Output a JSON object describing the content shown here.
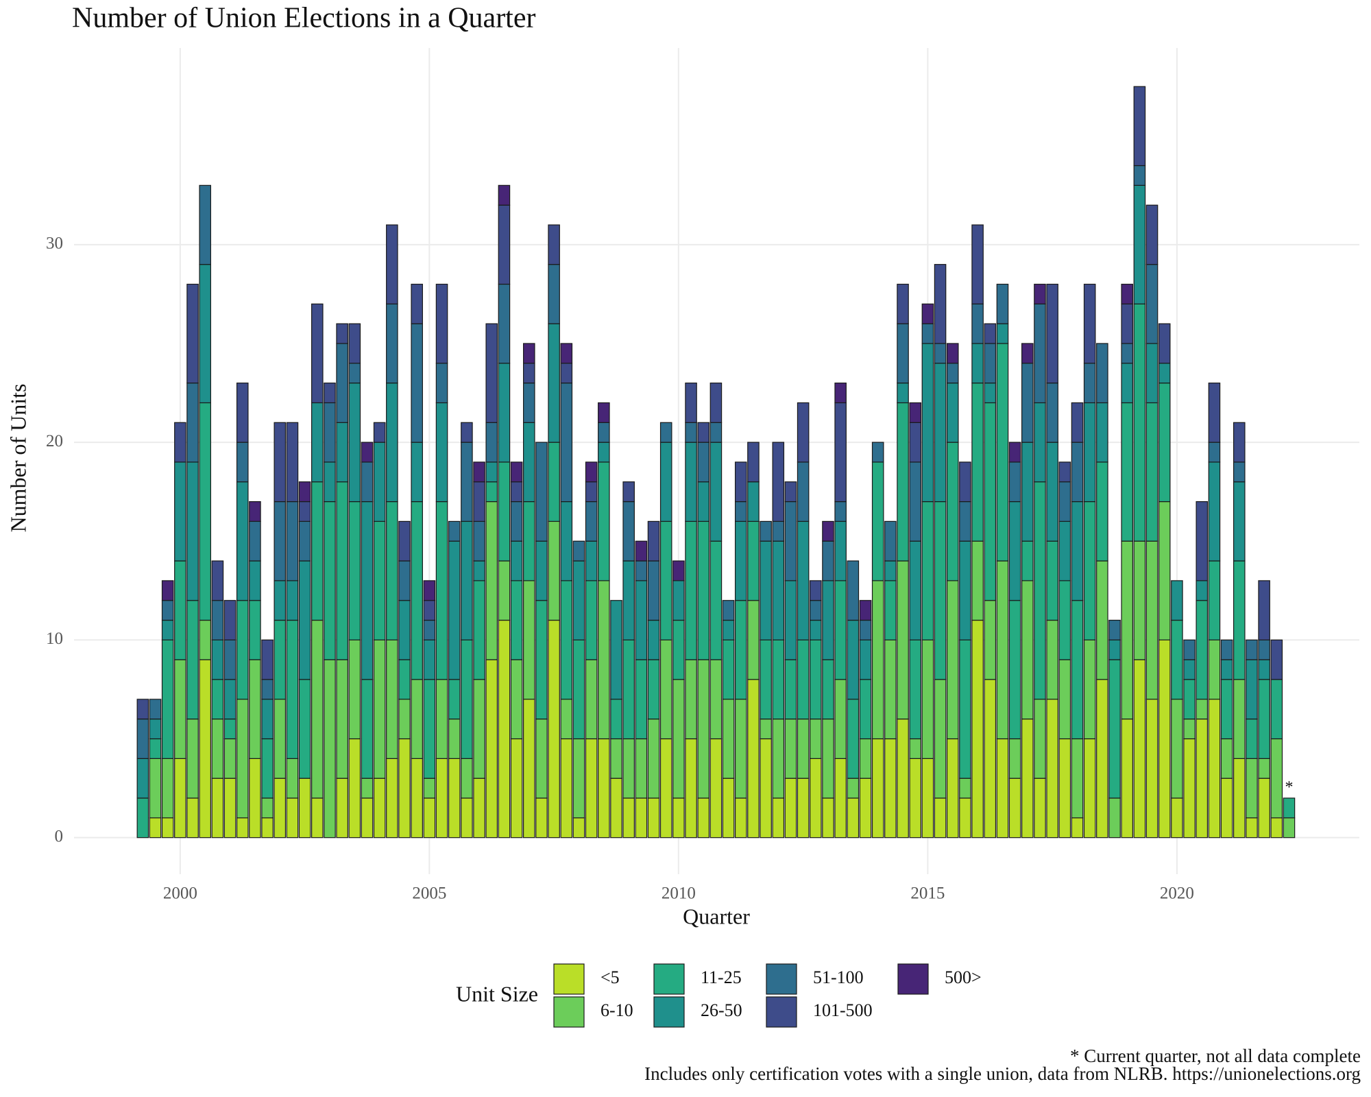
{
  "chart_data": {
    "type": "bar",
    "title": "Number of Union Elections in a Quarter",
    "x_label": "Quarter",
    "y_label": "Number of Units",
    "legend_title": "Unit Size",
    "annotation": "*",
    "caption": [
      "* Current quarter, not all data complete",
      "Includes only certification votes with a single union, data from NLRB. https://unionelections.org"
    ],
    "stacked": true,
    "grid": true,
    "legend": "bottom",
    "x": [
      1999.25,
      1999.5,
      1999.75,
      2000,
      2000.25,
      2000.5,
      2000.75,
      2001,
      2001.25,
      2001.5,
      2001.75,
      2002,
      2002.25,
      2002.5,
      2002.75,
      2003,
      2003.25,
      2003.5,
      2003.75,
      2004,
      2004.25,
      2004.5,
      2004.75,
      2005,
      2005.25,
      2005.5,
      2005.75,
      2006,
      2006.25,
      2006.5,
      2006.75,
      2007,
      2007.25,
      2007.5,
      2007.75,
      2008,
      2008.25,
      2008.5,
      2008.75,
      2009,
      2009.25,
      2009.5,
      2009.75,
      2010,
      2010.25,
      2010.5,
      2010.75,
      2011,
      2011.25,
      2011.5,
      2011.75,
      2012,
      2012.25,
      2012.5,
      2012.75,
      2013,
      2013.25,
      2013.5,
      2013.75,
      2014,
      2014.25,
      2014.5,
      2014.75,
      2015,
      2015.25,
      2015.5,
      2015.75,
      2016,
      2016.25,
      2016.5,
      2016.75,
      2017,
      2017.25,
      2017.5,
      2017.75,
      2018,
      2018.25,
      2018.5,
      2018.75,
      2019,
      2019.25,
      2019.5,
      2019.75,
      2020,
      2020.25,
      2020.5,
      2020.75,
      2021,
      2021.25,
      2021.5,
      2021.75,
      2022,
      2022.25
    ],
    "xlim": [
      1997.87,
      2023.66
    ],
    "xticks": [
      2000,
      2005,
      2010,
      2015,
      2020
    ],
    "ylim": [
      -1.85,
      39.95
    ],
    "yticks": [
      0,
      10,
      20,
      30
    ],
    "series": [
      {
        "name": "<5",
        "color": "#bade28",
        "values": [
          0,
          1,
          1,
          4,
          2,
          9,
          3,
          3,
          1,
          4,
          1,
          3,
          2,
          3,
          2,
          0,
          3,
          5,
          2,
          3,
          4,
          5,
          4,
          2,
          4,
          4,
          2,
          3,
          9,
          11,
          5,
          7,
          2,
          11,
          5,
          1,
          5,
          5,
          3,
          2,
          2,
          2,
          5,
          2,
          5,
          2,
          5,
          3,
          2,
          8,
          5,
          2,
          3,
          3,
          4,
          2,
          4,
          2,
          3,
          5,
          5,
          6,
          4,
          4,
          2,
          5,
          2,
          11,
          8,
          5,
          3,
          6,
          3,
          7,
          5,
          1,
          5,
          8,
          0,
          6,
          9,
          7,
          10,
          2,
          5,
          6,
          7,
          3,
          4,
          1,
          3,
          1,
          0
        ]
      },
      {
        "name": "6-10",
        "color": "#6ccd5a",
        "values": [
          0,
          3,
          3,
          5,
          4,
          2,
          3,
          2,
          6,
          5,
          1,
          4,
          2,
          0,
          9,
          9,
          6,
          5,
          1,
          7,
          6,
          2,
          4,
          1,
          4,
          2,
          2,
          5,
          8,
          3,
          4,
          6,
          4,
          5,
          2,
          4,
          4,
          8,
          2,
          3,
          3,
          4,
          5,
          6,
          4,
          7,
          4,
          4,
          5,
          4,
          1,
          4,
          3,
          3,
          2,
          4,
          4,
          1,
          2,
          8,
          5,
          8,
          1,
          6,
          6,
          8,
          1,
          4,
          4,
          9,
          2,
          7,
          4,
          4,
          4,
          4,
          5,
          6,
          2,
          9,
          6,
          8,
          7,
          5,
          1,
          1,
          3,
          2,
          4,
          3,
          1,
          4,
          1
        ]
      },
      {
        "name": "11-25",
        "color": "#25ab82",
        "values": [
          2,
          1,
          6,
          5,
          6,
          11,
          2,
          1,
          5,
          3,
          3,
          4,
          7,
          5,
          7,
          8,
          9,
          7,
          5,
          6,
          7,
          2,
          9,
          5,
          9,
          2,
          6,
          5,
          1,
          5,
          4,
          4,
          6,
          4,
          6,
          5,
          4,
          6,
          2,
          5,
          4,
          3,
          6,
          3,
          7,
          7,
          6,
          3,
          5,
          4,
          4,
          4,
          3,
          4,
          4,
          3,
          5,
          4,
          3,
          6,
          3,
          8,
          5,
          7,
          9,
          7,
          7,
          8,
          10,
          11,
          7,
          2,
          11,
          4,
          4,
          7,
          7,
          5,
          7,
          7,
          12,
          7,
          6,
          4,
          2,
          5,
          4,
          3,
          6,
          2,
          4,
          3,
          1
        ]
      },
      {
        "name": "26-50",
        "color": "#1f908c",
        "values": [
          2,
          1,
          1,
          5,
          7,
          7,
          2,
          2,
          6,
          2,
          2,
          2,
          2,
          6,
          4,
          2,
          3,
          6,
          9,
          4,
          6,
          3,
          3,
          2,
          5,
          7,
          6,
          1,
          1,
          5,
          2,
          4,
          3,
          6,
          4,
          4,
          2,
          1,
          5,
          4,
          4,
          2,
          4,
          2,
          4,
          2,
          5,
          1,
          4,
          2,
          5,
          5,
          4,
          6,
          1,
          4,
          3,
          4,
          2,
          0,
          1,
          1,
          5,
          8,
          7,
          3,
          5,
          2,
          1,
          1,
          5,
          5,
          4,
          5,
          3,
          5,
          5,
          3,
          1,
          2,
          6,
          3,
          1,
          2,
          1,
          1,
          5,
          1,
          4,
          3,
          1,
          0,
          0
        ]
      },
      {
        "name": "51-100",
        "color": "#2e6e8e",
        "values": [
          2,
          1,
          1,
          0,
          4,
          4,
          2,
          2,
          2,
          2,
          1,
          4,
          4,
          2,
          0,
          3,
          4,
          1,
          2,
          0,
          4,
          2,
          6,
          1,
          2,
          1,
          4,
          2,
          2,
          4,
          2,
          2,
          5,
          3,
          6,
          1,
          2,
          1,
          0,
          3,
          1,
          3,
          1,
          0,
          1,
          2,
          1,
          1,
          1,
          0,
          1,
          1,
          4,
          3,
          1,
          2,
          1,
          3,
          1,
          1,
          2,
          3,
          4,
          1,
          1,
          1,
          2,
          2,
          2,
          2,
          2,
          4,
          5,
          3,
          2,
          3,
          2,
          3,
          1,
          1,
          1,
          4,
          0,
          0,
          1,
          0,
          1,
          1,
          1,
          1,
          1,
          0,
          0
        ]
      },
      {
        "name": "101-500",
        "color": "#3e4c8a",
        "values": [
          1,
          0,
          0,
          2,
          5,
          0,
          2,
          2,
          3,
          0,
          2,
          4,
          4,
          1,
          5,
          1,
          1,
          2,
          0,
          1,
          4,
          2,
          2,
          1,
          4,
          0,
          1,
          2,
          5,
          4,
          1,
          1,
          0,
          2,
          1,
          0,
          1,
          0,
          0,
          1,
          0,
          2,
          0,
          0,
          2,
          1,
          2,
          0,
          2,
          2,
          0,
          4,
          1,
          3,
          1,
          0,
          5,
          0,
          0,
          0,
          0,
          2,
          2,
          0,
          4,
          0,
          2,
          4,
          1,
          0,
          0,
          0,
          0,
          5,
          1,
          2,
          4,
          0,
          0,
          2,
          4,
          3,
          2,
          0,
          0,
          4,
          3,
          0,
          2,
          0,
          3,
          2,
          0
        ]
      },
      {
        "name": "500>",
        "color": "#472576",
        "values": [
          0,
          0,
          1,
          0,
          0,
          0,
          0,
          0,
          0,
          1,
          0,
          0,
          0,
          1,
          0,
          0,
          0,
          0,
          1,
          0,
          0,
          0,
          0,
          1,
          0,
          0,
          0,
          1,
          0,
          1,
          1,
          1,
          0,
          0,
          1,
          0,
          1,
          1,
          0,
          0,
          1,
          0,
          0,
          1,
          0,
          0,
          0,
          0,
          0,
          0,
          0,
          0,
          0,
          0,
          0,
          1,
          1,
          0,
          1,
          0,
          0,
          0,
          1,
          1,
          0,
          1,
          0,
          0,
          0,
          0,
          1,
          1,
          1,
          0,
          0,
          0,
          0,
          0,
          0,
          1,
          0,
          0,
          0,
          0,
          0,
          0,
          0,
          0,
          0,
          0,
          0,
          0,
          0
        ]
      }
    ]
  }
}
